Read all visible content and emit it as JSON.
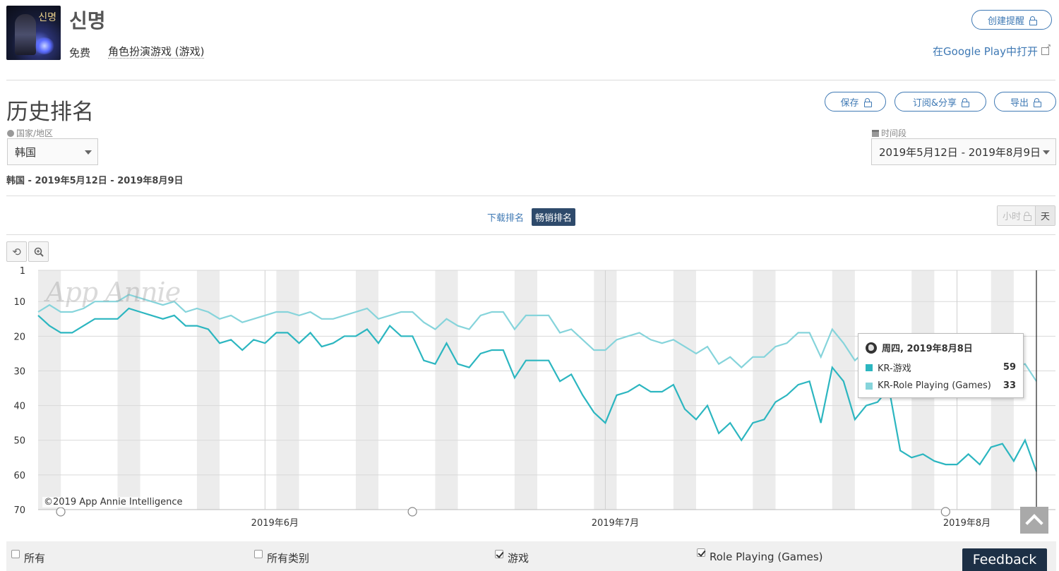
{
  "app": {
    "title": "신명",
    "price": "免费",
    "category": "角色扮演游戏 (游戏)",
    "create_alert": "创建提醒",
    "google_play": "在Google Play中打开"
  },
  "section": {
    "title": "历史排名",
    "save": "保存",
    "subscribe": "订阅&分享",
    "export": "导出"
  },
  "filters": {
    "country_label": "国家/地区",
    "country_value": "韩国",
    "period_label": "时间段",
    "period_value": "2019年5月12日 - 2019年8月9日",
    "summary": "韩国 - 2019年5月12日 - 2019年8月9日"
  },
  "toggles": {
    "download": "下载排名",
    "grossing": "畅销排名",
    "hour": "小时",
    "day": "天"
  },
  "chart_data": {
    "type": "line",
    "y_axis": "rank (inverted)",
    "ylim": [
      1,
      70
    ],
    "yticks": [
      "1",
      "10",
      "20",
      "30",
      "40",
      "50",
      "60",
      "70"
    ],
    "xticks": [
      "2019年6月",
      "2019年7月",
      "2019年8月"
    ],
    "x_start": "2019-05-12",
    "x_end": "2019-08-09",
    "series": [
      {
        "name": "KR-游戏",
        "color": "#2cb6c0",
        "values": [
          14,
          17,
          19,
          19,
          17,
          15,
          15,
          15,
          12,
          13,
          14,
          15,
          14,
          17,
          17,
          18,
          22,
          21,
          24,
          21,
          22,
          19,
          19,
          22,
          19,
          23,
          22,
          20,
          20,
          18,
          22,
          17,
          20,
          20,
          27,
          28,
          22,
          28,
          29,
          25,
          24,
          24,
          32,
          27,
          27,
          27,
          33,
          31,
          37,
          42,
          45,
          37,
          36,
          34,
          36,
          36,
          34,
          41,
          44,
          40,
          48,
          45,
          50,
          45,
          44,
          39,
          37,
          34,
          33,
          45,
          29,
          33,
          44,
          40,
          39,
          35,
          53,
          55,
          54,
          56,
          57,
          57,
          54,
          57,
          52,
          51,
          56,
          50,
          59
        ]
      },
      {
        "name": "KR-Role Playing (Games)",
        "color": "#86d4db",
        "values": [
          13,
          11,
          13,
          13,
          12,
          10,
          10,
          10,
          8,
          9,
          10,
          11,
          10,
          13,
          12,
          13,
          15,
          14,
          16,
          15,
          14,
          13,
          13,
          14,
          13,
          15,
          15,
          14,
          13,
          12,
          15,
          14,
          13,
          13,
          16,
          18,
          15,
          17,
          18,
          14,
          13,
          13,
          18,
          14,
          14,
          14,
          19,
          18,
          21,
          24,
          24,
          21,
          20,
          19,
          21,
          22,
          21,
          23,
          25,
          23,
          28,
          26,
          29,
          26,
          26,
          23,
          22,
          19,
          19,
          26,
          18,
          22,
          27,
          24,
          26,
          25,
          28,
          29,
          30,
          30,
          31,
          30,
          29,
          30,
          28,
          27,
          29,
          28,
          33
        ]
      }
    ],
    "tooltip": {
      "date": "周四, 2019年8月8日",
      "rows": [
        {
          "name": "KR-游戏",
          "value": "59"
        },
        {
          "name": "KR-Role Playing (Games)",
          "value": "33"
        }
      ]
    },
    "watermark": "App Annie",
    "copyright": "©2019 App Annie Intelligence"
  },
  "legend": {
    "all": "所有",
    "all_categories": "所有类别",
    "games": "游戏",
    "role_playing": "Role Playing (Games)"
  },
  "feedback": "Feedback"
}
